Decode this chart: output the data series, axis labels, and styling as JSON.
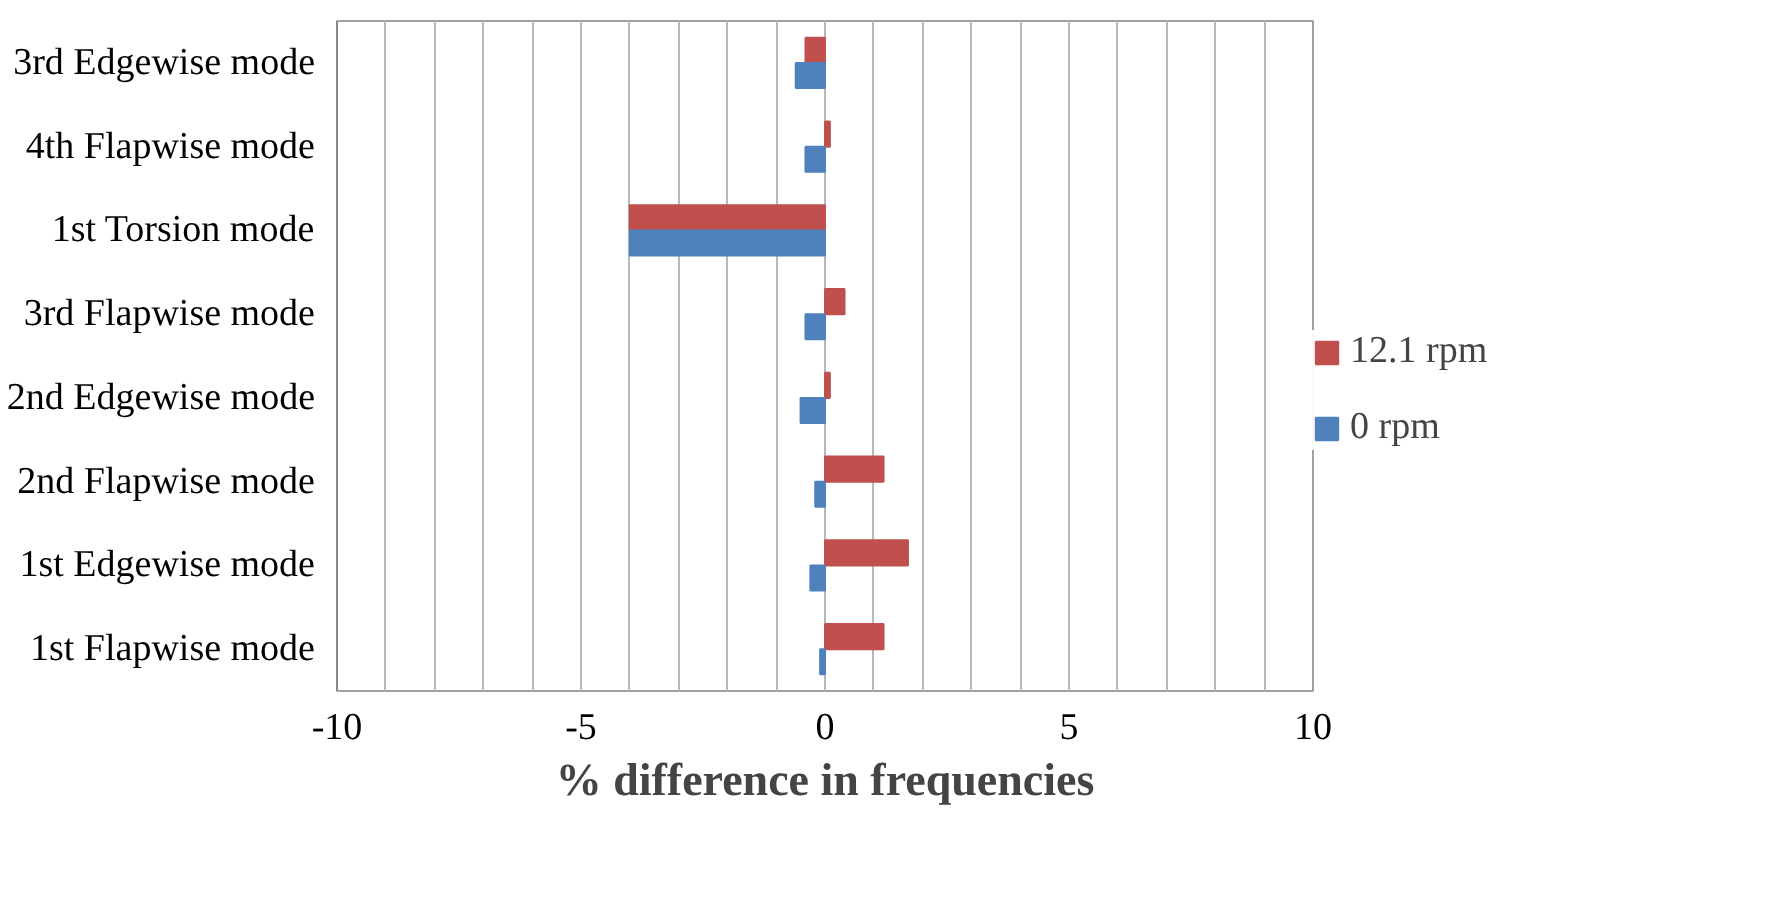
{
  "chart_data": {
    "type": "bar",
    "orientation": "horizontal",
    "xlabel": "% difference in frequencies",
    "categories": [
      "3rd Edgewise mode",
      "4th Flapwise mode",
      "1st Torsion mode",
      "3rd Flapwise mode",
      "2nd Edgewise mode",
      "2nd Flapwise mode",
      "1st Edgewise mode",
      "1st Flapwise mode"
    ],
    "series": [
      {
        "name": "12.1 rpm",
        "color": "#c0504d",
        "values": [
          -0.4,
          0.1,
          -4.0,
          0.4,
          0.1,
          1.2,
          1.7,
          1.2
        ]
      },
      {
        "name": "0 rpm",
        "color": "#4f81bd",
        "values": [
          -0.6,
          -0.4,
          -4.0,
          -0.4,
          -0.5,
          -0.2,
          -0.3,
          -0.1
        ]
      }
    ],
    "xlim": [
      -10,
      10
    ],
    "xticks": [
      -10,
      {
        "value": -9,
        "label": null
      },
      {
        "value": -8,
        "label": null
      },
      {
        "value": -7,
        "label": null
      },
      {
        "value": -6,
        "label": null
      },
      -5,
      {
        "value": -4,
        "label": null
      },
      {
        "value": -3,
        "label": null
      },
      {
        "value": -2,
        "label": null
      },
      {
        "value": -1,
        "label": null
      },
      0,
      {
        "value": 1,
        "label": null
      },
      {
        "value": 2,
        "label": null
      },
      {
        "value": 3,
        "label": null
      },
      {
        "value": 4,
        "label": null
      },
      5,
      {
        "value": 6,
        "label": null
      },
      {
        "value": 7,
        "label": null
      },
      {
        "value": 8,
        "label": null
      },
      {
        "value": 9,
        "label": null
      },
      10
    ],
    "grid": "x",
    "legend": "right"
  }
}
